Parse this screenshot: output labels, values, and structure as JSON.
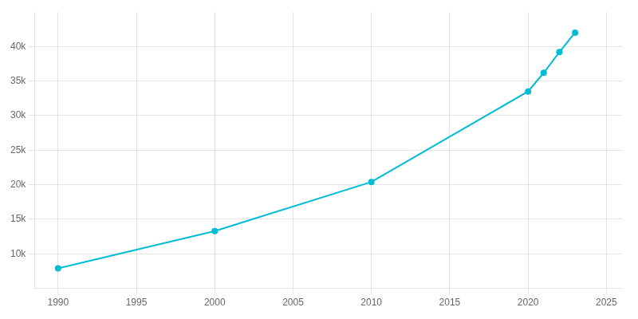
{
  "chart_data": {
    "type": "line",
    "x": [
      1990,
      2000,
      2010,
      2020,
      2021,
      2022,
      2023
    ],
    "values": [
      7900,
      13300,
      20400,
      33500,
      36200,
      39200,
      42000
    ],
    "color": "#00BCD4",
    "marker": "circle",
    "xlim": [
      1988.5,
      2026
    ],
    "xticks": [
      1990,
      1995,
      2000,
      2005,
      2010,
      2015,
      2020,
      2025
    ],
    "ylim": [
      5000,
      45000
    ],
    "yticks": [
      {
        "value": 10000,
        "label": "10k"
      },
      {
        "value": 15000,
        "label": "15k"
      },
      {
        "value": 20000,
        "label": "20k"
      },
      {
        "value": 25000,
        "label": "25k"
      },
      {
        "value": 30000,
        "label": "30k"
      },
      {
        "value": 35000,
        "label": "35k"
      },
      {
        "value": 40000,
        "label": "40k"
      }
    ],
    "grid": true
  }
}
